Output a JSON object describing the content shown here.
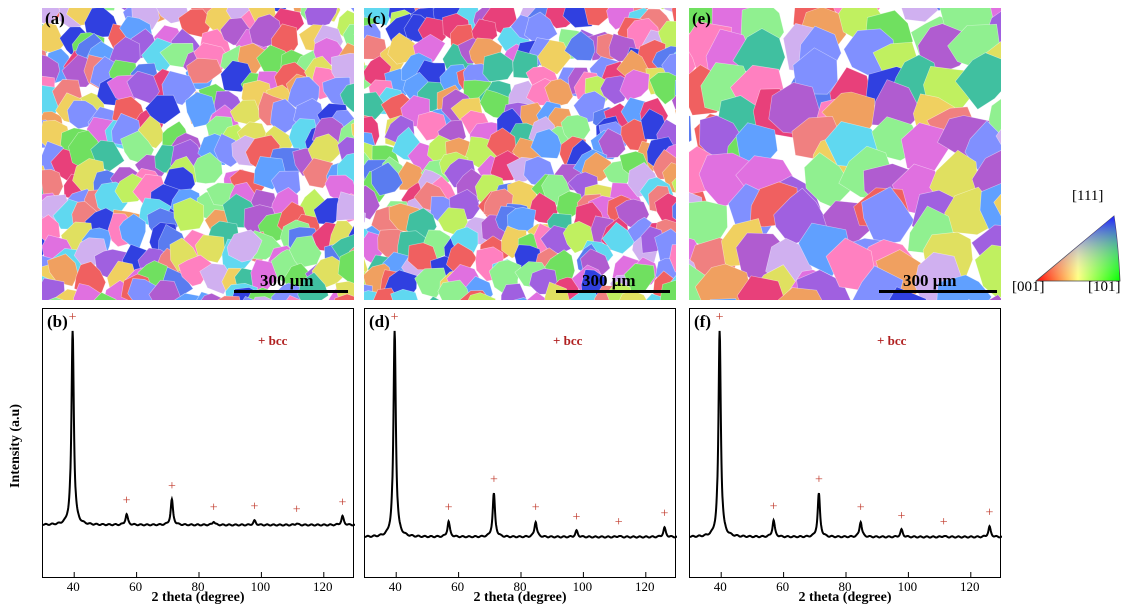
{
  "panels_ebsd": [
    {
      "label": "(a)",
      "scale": "300 μm"
    },
    {
      "label": "(c)",
      "scale": "300 μm"
    },
    {
      "label": "(e)",
      "scale": "300 μm"
    }
  ],
  "panels_xrd": [
    {
      "label": "(b)",
      "legend": "+ bcc"
    },
    {
      "label": "(d)",
      "legend": "+ bcc"
    },
    {
      "label": "(f)",
      "legend": "+ bcc"
    }
  ],
  "y_axis_label": "Intensity (a.u)",
  "x_axis_label": "2 theta (degree)",
  "ipf": {
    "top": "[111]",
    "left": "[001]",
    "right": "[101]"
  },
  "colors": {
    "peak_marker": "#c0392b",
    "line": "#000000"
  },
  "chart_data": [
    {
      "type": "line",
      "label": "(b)",
      "xlabel": "2 theta (degree)",
      "ylabel": "Intensity (a.u)",
      "xlim": [
        30,
        130
      ],
      "xticks": [
        40,
        60,
        80,
        100,
        120
      ],
      "peaks": [
        {
          "x": 39.5,
          "h": 1.0,
          "marker": true
        },
        {
          "x": 56.8,
          "h": 0.055,
          "marker": true
        },
        {
          "x": 71.3,
          "h": 0.13,
          "marker": true
        },
        {
          "x": 84.7,
          "h": 0.018,
          "marker": true
        },
        {
          "x": 97.8,
          "h": 0.022,
          "marker": true
        },
        {
          "x": 111.3,
          "h": 0.008,
          "marker": true
        },
        {
          "x": 126.0,
          "h": 0.045,
          "marker": true
        }
      ]
    },
    {
      "type": "line",
      "label": "(d)",
      "xlabel": "2 theta (degree)",
      "ylabel": "Intensity (a.u)",
      "xlim": [
        30,
        130
      ],
      "xticks": [
        40,
        60,
        80,
        100,
        120
      ],
      "peaks": [
        {
          "x": 39.5,
          "h": 1.0,
          "marker": true
        },
        {
          "x": 56.8,
          "h": 0.075,
          "marker": true
        },
        {
          "x": 71.3,
          "h": 0.21,
          "marker": true
        },
        {
          "x": 84.7,
          "h": 0.075,
          "marker": true
        },
        {
          "x": 97.8,
          "h": 0.03,
          "marker": true
        },
        {
          "x": 111.3,
          "h": 0.005,
          "marker": true
        },
        {
          "x": 126.0,
          "h": 0.045,
          "marker": true
        }
      ]
    },
    {
      "type": "line",
      "label": "(f)",
      "xlabel": "2 theta (degree)",
      "ylabel": "Intensity (a.u)",
      "xlim": [
        30,
        130
      ],
      "xticks": [
        40,
        60,
        80,
        100,
        120
      ],
      "peaks": [
        {
          "x": 39.5,
          "h": 1.0,
          "marker": true
        },
        {
          "x": 56.8,
          "h": 0.08,
          "marker": true
        },
        {
          "x": 71.3,
          "h": 0.21,
          "marker": true
        },
        {
          "x": 84.7,
          "h": 0.075,
          "marker": true
        },
        {
          "x": 97.8,
          "h": 0.035,
          "marker": true
        },
        {
          "x": 111.3,
          "h": 0.005,
          "marker": true
        },
        {
          "x": 126.0,
          "h": 0.05,
          "marker": true
        }
      ]
    }
  ]
}
